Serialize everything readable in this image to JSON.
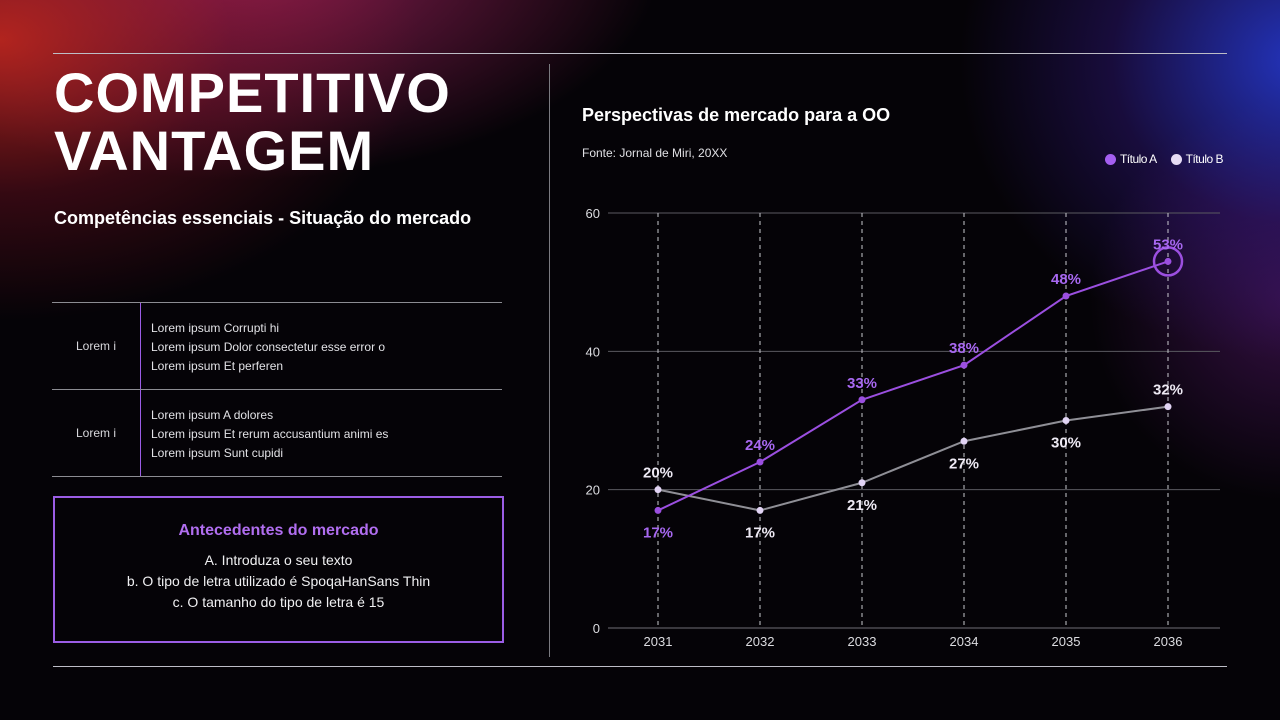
{
  "slide": {
    "title_line1": "COMPETITIVO",
    "title_line2": "VANTAGEM",
    "subtitle": "Competências essenciais - Situação do mercado"
  },
  "table": {
    "rows": [
      {
        "label": "Lorem i",
        "lines": [
          "Lorem ipsum Corrupti hi",
          "Lorem ipsum Dolor consectetur esse error o",
          "Lorem ipsum Et perferen"
        ]
      },
      {
        "label": "Lorem i",
        "lines": [
          "Lorem ipsum A dolores",
          "Lorem ipsum Et rerum accusantium animi es",
          "Lorem ipsum Sunt cupidi"
        ]
      }
    ]
  },
  "background_box": {
    "heading": "Antecedentes do mercado",
    "items": [
      "A. Introduza o seu texto",
      "b. O tipo de letra utilizado é SpoqaHanSans Thin",
      "c. O tamanho do tipo de letra é 15"
    ]
  },
  "chart_header": {
    "title": "Perspectivas de mercado para a OO",
    "source": "Fonte: Jornal de Miri, 20XX"
  },
  "colors": {
    "accent": "#9b5de5",
    "series_a": "#9b4fe0",
    "series_a_label": "#a768f0",
    "series_b": "#8f8f96",
    "series_b_point": "#e2d4f5"
  },
  "chart_data": {
    "type": "line",
    "title": "Perspectivas de mercado para a OO",
    "xlabel": "",
    "ylabel": "",
    "categories": [
      "2031",
      "2032",
      "2033",
      "2034",
      "2035",
      "2036"
    ],
    "ylim": [
      0,
      60
    ],
    "yticks": [
      0,
      20,
      40,
      60
    ],
    "grid": true,
    "legend": "top-right",
    "series": [
      {
        "name": "Título A",
        "values": [
          17,
          24,
          33,
          38,
          48,
          53
        ],
        "labels": [
          "17%",
          "24%",
          "33%",
          "38%",
          "48%",
          "53%"
        ],
        "label_position": [
          "below",
          "above",
          "above",
          "above",
          "above",
          "above"
        ]
      },
      {
        "name": "Título B",
        "values": [
          20,
          17,
          21,
          27,
          30,
          32
        ],
        "labels": [
          "20%",
          "17%",
          "21%",
          "27%",
          "30%",
          "32%"
        ],
        "label_position": [
          "above",
          "below",
          "below",
          "below",
          "below",
          "above"
        ]
      }
    ],
    "highlight": {
      "series": 0,
      "index": 5
    }
  }
}
